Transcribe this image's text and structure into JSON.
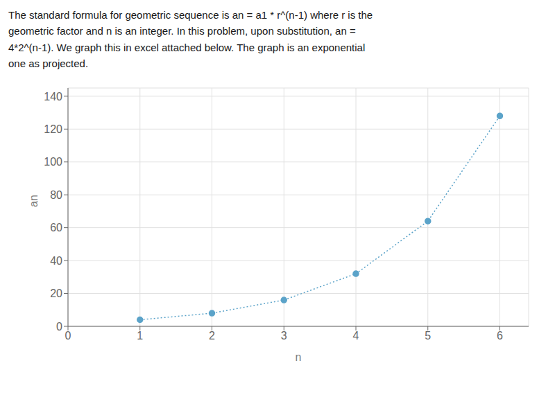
{
  "chart_data": {
    "type": "line",
    "annotations": [
      "The standard formula for geometric sequence is an = a1 * r^(n-1) where r is the\ngeometric factor and n is an integer. In this problem, upon substitution, an =\n4*2^(n-1). We graph this in excel attached below. The graph is an exponential\none as projected."
    ],
    "x": [
      1,
      2,
      3,
      4,
      5,
      6
    ],
    "series": [
      {
        "name": "an",
        "color": "#5BA3C9",
        "values": [
          4,
          8,
          16,
          32,
          64,
          128
        ],
        "line_style": "dotted",
        "marker": "circle"
      }
    ],
    "xlabel": "n",
    "ylabel": "an",
    "xlim": [
      0,
      6.4
    ],
    "ylim": [
      0,
      145
    ],
    "xticks": [
      0,
      1,
      2,
      3,
      4,
      5,
      6
    ],
    "yticks": [
      0,
      20,
      40,
      60,
      80,
      100,
      120,
      140
    ],
    "grid": true
  }
}
